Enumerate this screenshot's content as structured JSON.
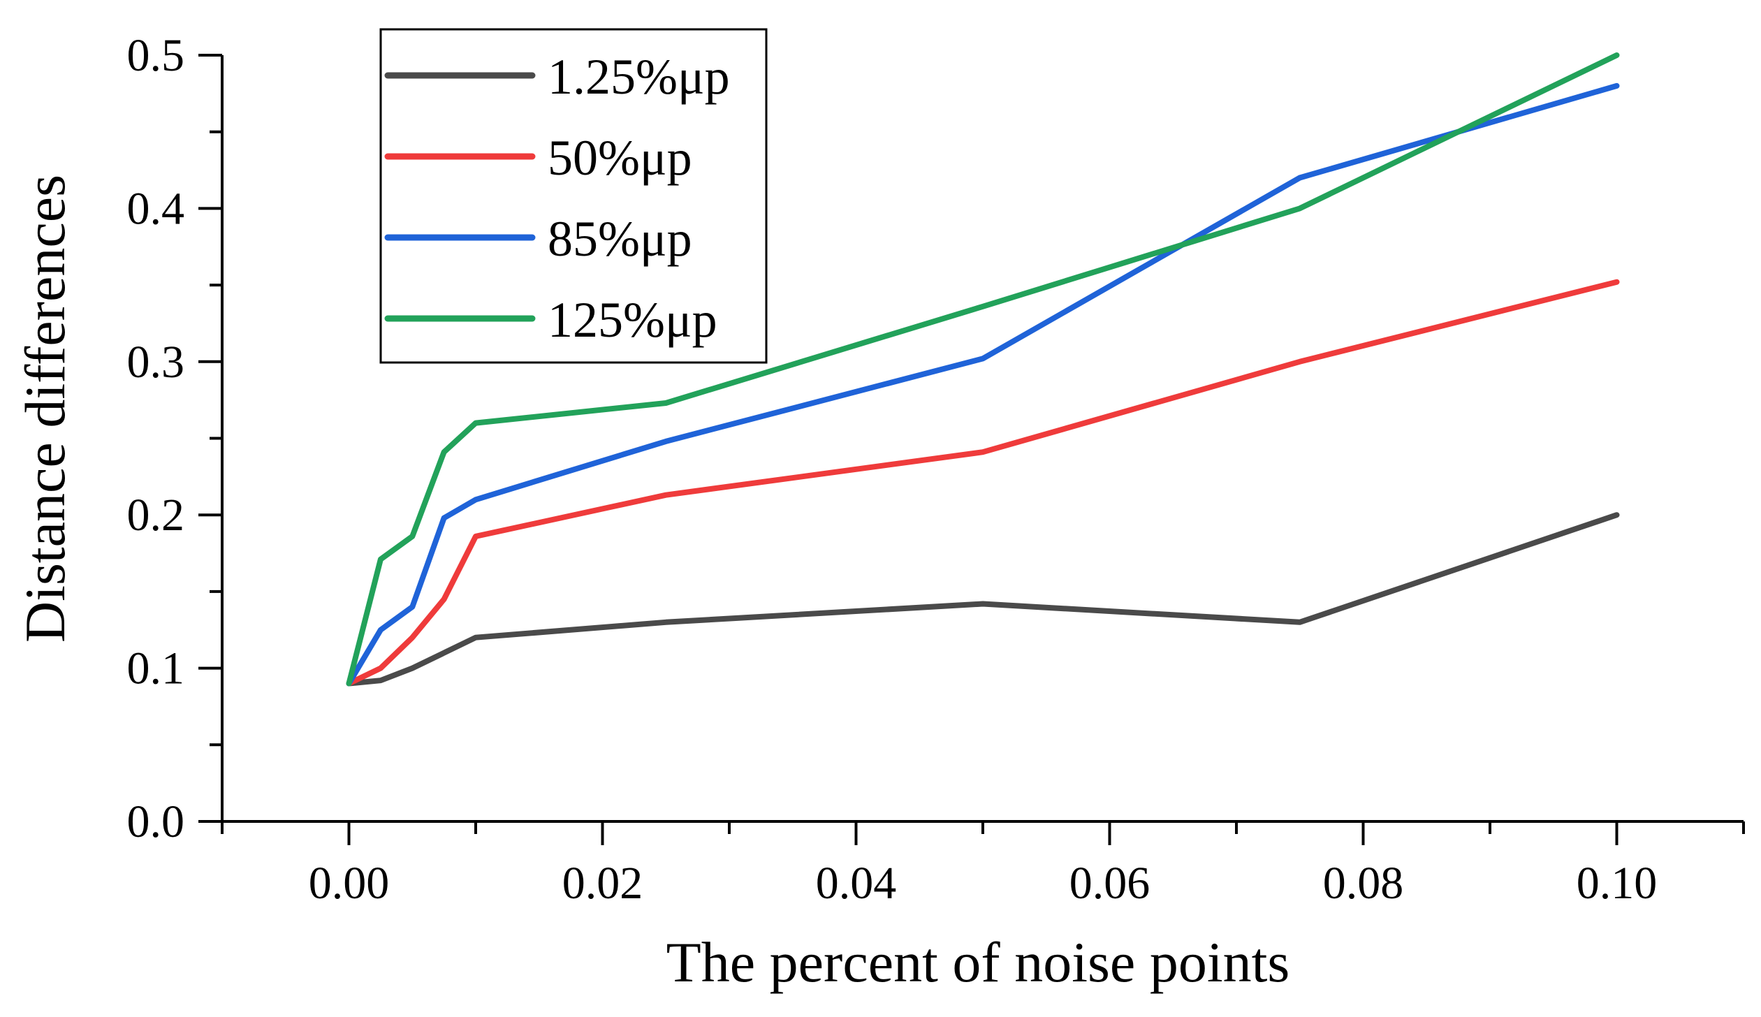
{
  "chart_data": {
    "type": "line",
    "title": "",
    "xlabel": "The percent of noise points",
    "ylabel": "Distance differences",
    "xlim": [
      -0.01,
      0.11
    ],
    "ylim": [
      0.0,
      0.5
    ],
    "x_ticks": [
      0.0,
      0.02,
      0.04,
      0.06,
      0.08,
      0.1
    ],
    "x_tick_labels": [
      "0.00",
      "0.02",
      "0.04",
      "0.06",
      "0.08",
      "0.10"
    ],
    "x_minor_ticks": [
      -0.01,
      0.01,
      0.03,
      0.05,
      0.07,
      0.09,
      0.11
    ],
    "y_ticks": [
      0.0,
      0.1,
      0.2,
      0.3,
      0.4,
      0.5
    ],
    "y_tick_labels": [
      "0.0",
      "0.1",
      "0.2",
      "0.3",
      "0.4",
      "0.5"
    ],
    "y_minor_ticks": [
      0.05,
      0.15,
      0.25,
      0.35,
      0.45
    ],
    "grid": false,
    "legend_position": "top-left",
    "x": [
      0.0,
      0.0025,
      0.005,
      0.0075,
      0.01,
      0.025,
      0.05,
      0.075,
      0.1
    ],
    "series": [
      {
        "name": "1.25%μp",
        "color": "#4a4a4a",
        "values": [
          0.09,
          0.092,
          0.1,
          0.11,
          0.12,
          0.13,
          0.142,
          0.13,
          0.2
        ]
      },
      {
        "name": "50%μp",
        "color": "#ef3b3b",
        "values": [
          0.09,
          0.1,
          0.12,
          0.145,
          0.186,
          0.213,
          0.241,
          0.3,
          0.352
        ]
      },
      {
        "name": "85%μp",
        "color": "#1f63d8",
        "values": [
          0.09,
          0.125,
          0.14,
          0.198,
          0.21,
          0.248,
          0.302,
          0.42,
          0.48
        ]
      },
      {
        "name": "125%μp",
        "color": "#22a25a",
        "values": [
          0.09,
          0.171,
          0.186,
          0.241,
          0.26,
          0.273,
          0.336,
          0.4,
          0.5
        ]
      }
    ]
  }
}
